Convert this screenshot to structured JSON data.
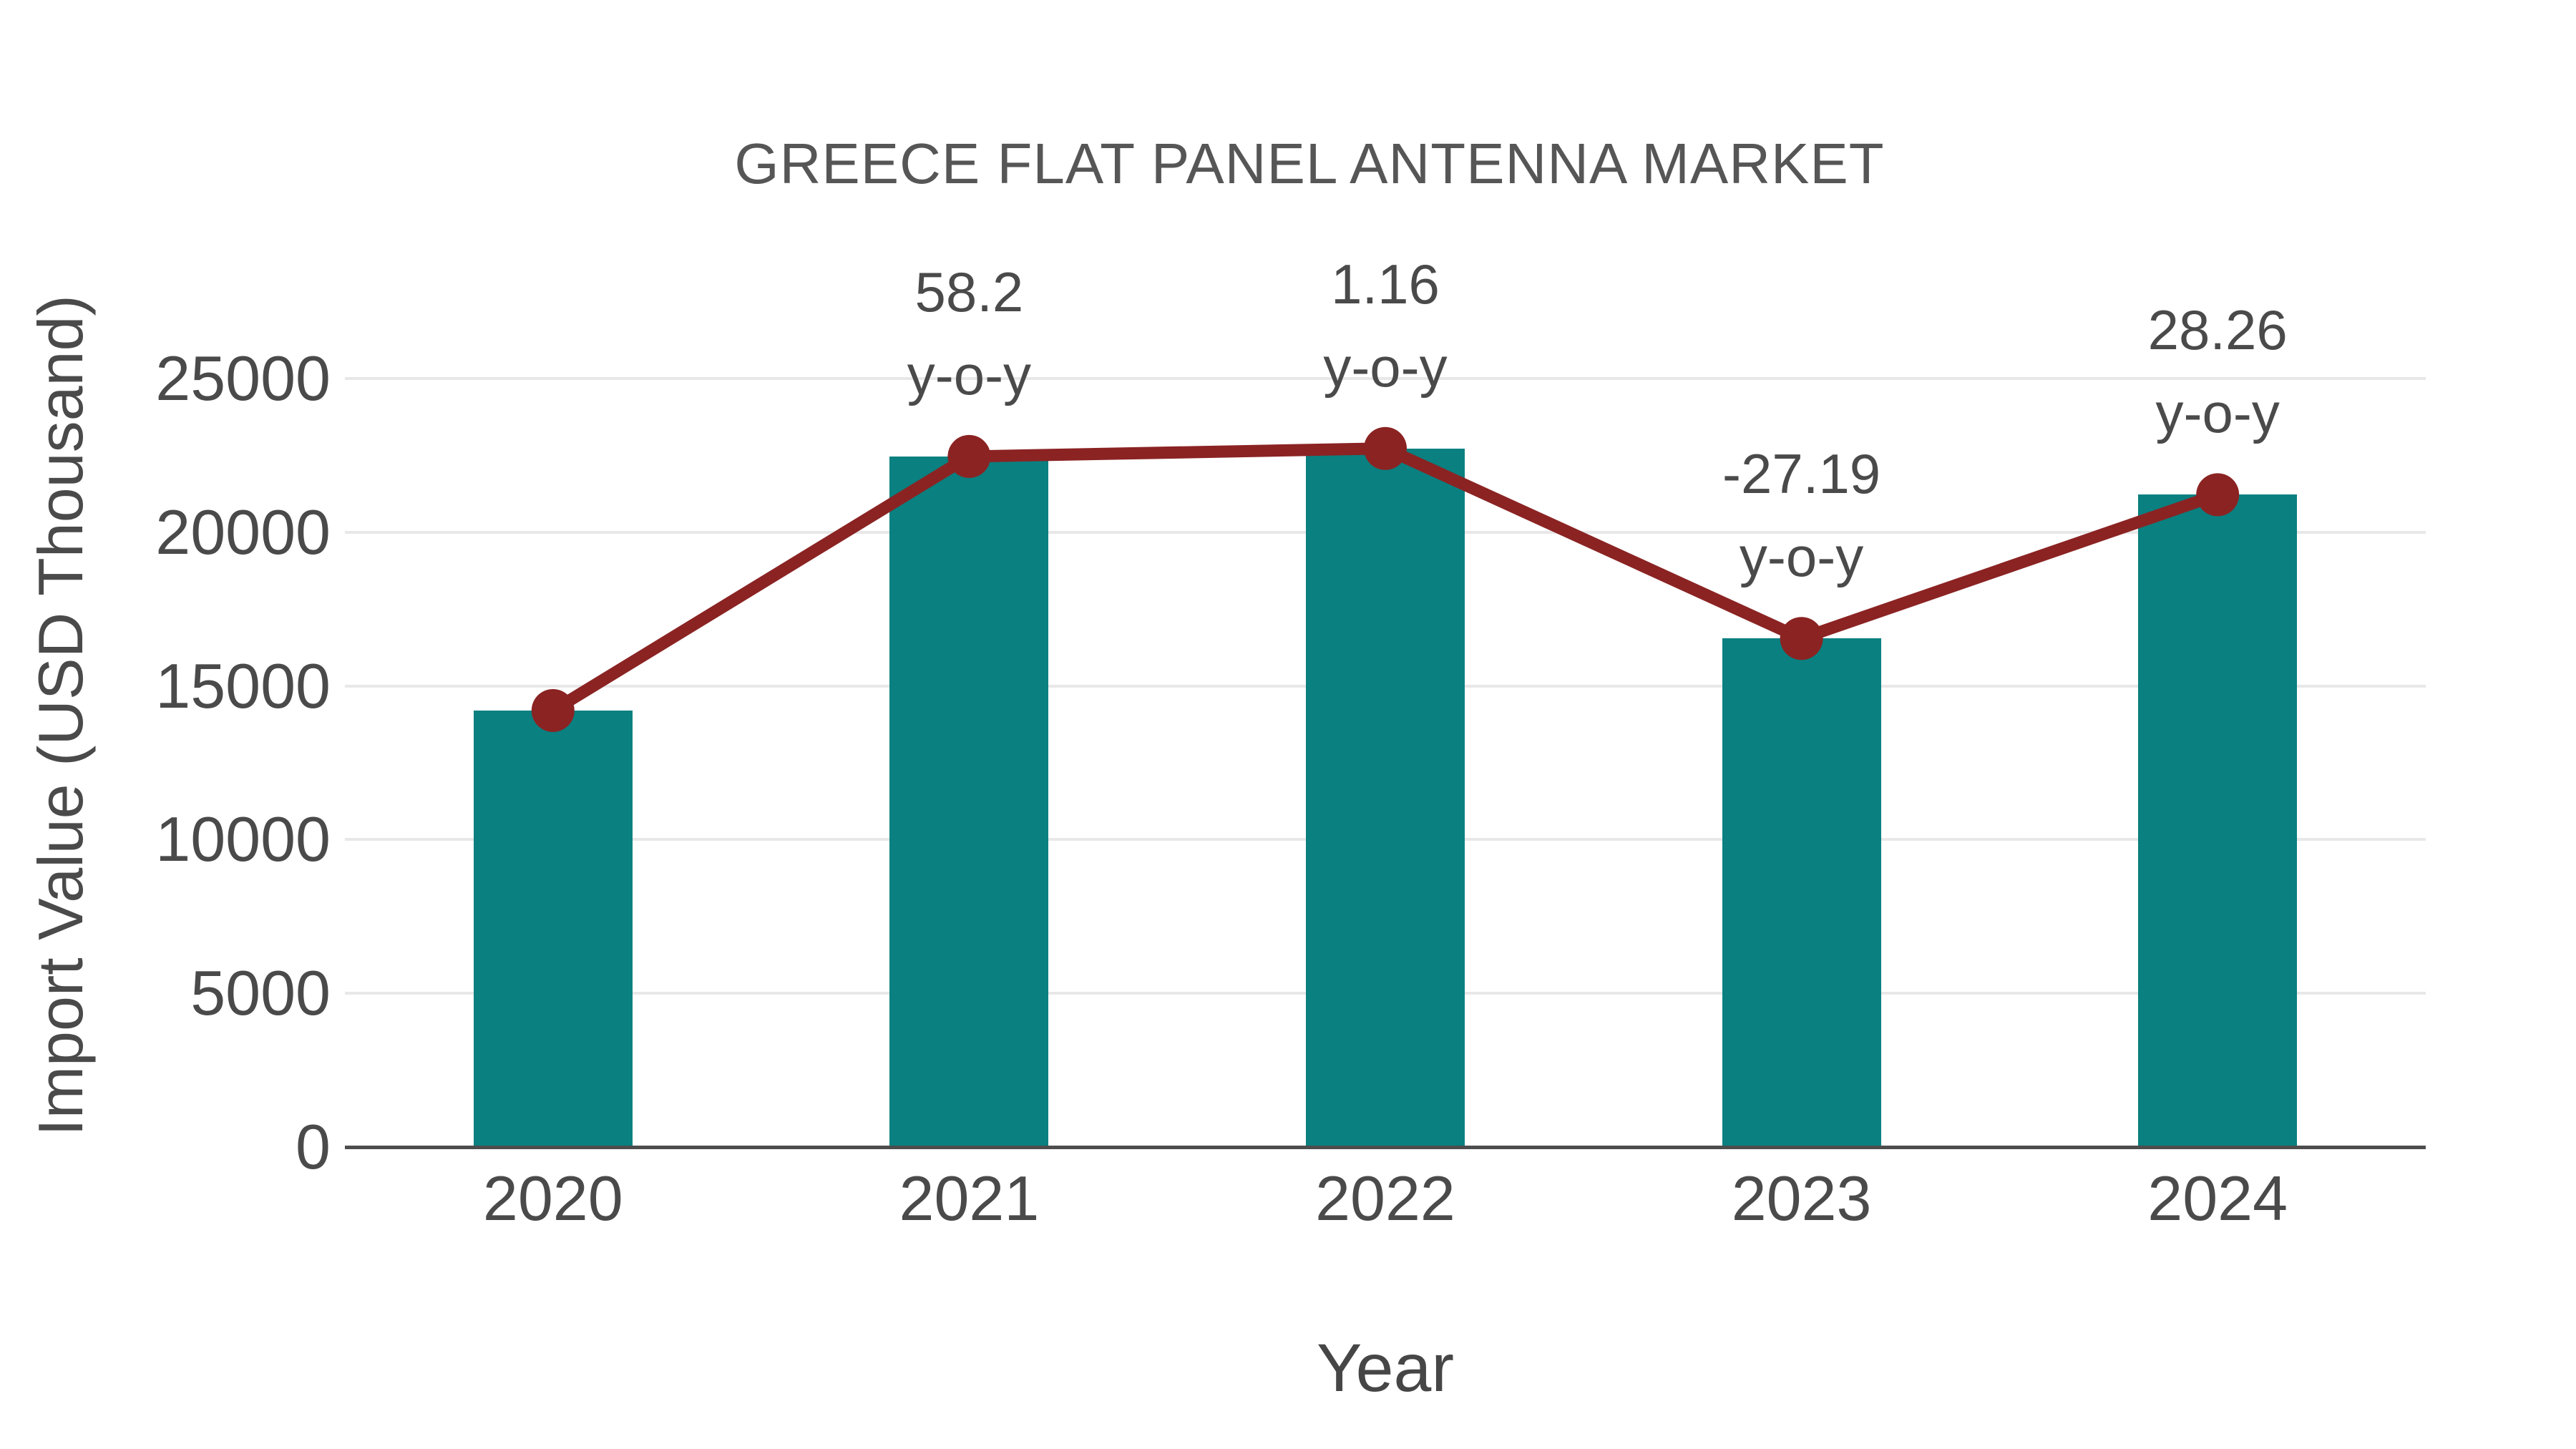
{
  "title": "GREECE FLAT PANEL ANTENNA MARKET",
  "chart_data": {
    "type": "bar",
    "title": "GREECE FLAT PANEL ANTENNA MARKET",
    "categories": [
      "2020",
      "2021",
      "2022",
      "2023",
      "2024"
    ],
    "series": [
      {
        "name": "Import Value",
        "type": "bar",
        "values": [
          14200,
          22465,
          22725,
          16545,
          21220
        ]
      },
      {
        "name": "y-o-y growth",
        "type": "line",
        "values": [
          null,
          58.2,
          1.16,
          -27.19,
          28.26
        ]
      }
    ],
    "annotation_suffix": "y-o-y",
    "xlabel": "Year",
    "ylabel": "Import Value (USD Thousand)",
    "ylim": [
      0,
      25000
    ],
    "yticks": [
      0,
      5000,
      10000,
      15000,
      20000,
      25000
    ],
    "grid": true,
    "legend": false,
    "colors": {
      "bar": "#0a8080",
      "line": "#8b2323",
      "text": "#4a4a4a",
      "grid": "#e8e8e8",
      "axis": "#4d4d4d"
    }
  }
}
